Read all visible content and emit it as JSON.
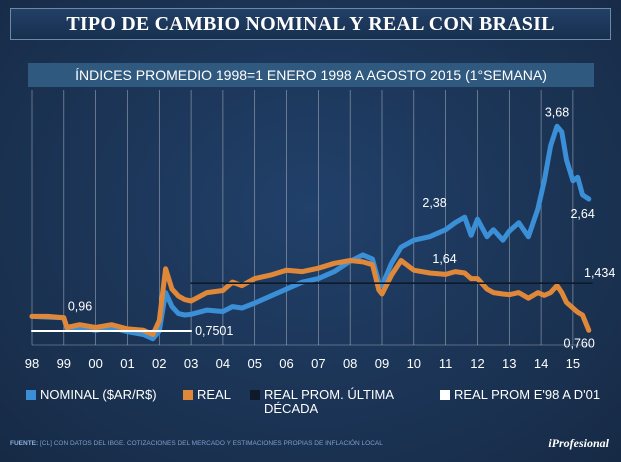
{
  "title": "TIPO DE CAMBIO NOMINAL Y REAL CON BRASIL",
  "footer": {
    "label": "FUENTE:",
    "text": "[CL] CON DATOS DEL IBGE. COTIZACIONES DEL MERCADO Y ESTIMACIONES PROPIAS DE INFLACIÓN LOCAL",
    "brand": "iProfesional"
  },
  "colors": {
    "nominal": "#3a8fd6",
    "real": "#e0883a",
    "real_prom_decada": "#0e1a2a",
    "real_prom_98_01": "#ffffff",
    "background": "#1d3656"
  },
  "chart_data": {
    "type": "line",
    "title": "ÍNDICES PROMEDIO 1998=1 ENERO 1998 A AGOSTO 2015 (1°SEMANA)",
    "xlabel": "",
    "ylabel": "",
    "xlim": [
      1998.0,
      2015.6
    ],
    "ylim": [
      0.55,
      4.2
    ],
    "x_tick_labels": [
      "98",
      "99",
      "00",
      "01",
      "02",
      "03",
      "04",
      "05",
      "06",
      "07",
      "08",
      "09",
      "10",
      "11",
      "12",
      "13",
      "14",
      "15"
    ],
    "series": [
      {
        "name": "NOMINAL ($AR/R$)",
        "x": [
          1998.0,
          1998.5,
          1999.0,
          1999.1,
          1999.5,
          2000.0,
          2000.5,
          2001.0,
          2001.5,
          2001.8,
          2002.0,
          2002.2,
          2002.4,
          2002.6,
          2002.8,
          2003.0,
          2003.5,
          2004.0,
          2004.3,
          2004.6,
          2005.0,
          2005.5,
          2006.0,
          2006.5,
          2007.0,
          2007.5,
          2008.0,
          2008.4,
          2008.7,
          2008.9,
          2009.0,
          2009.3,
          2009.6,
          2010.0,
          2010.5,
          2011.0,
          2011.3,
          2011.6,
          2011.8,
          2012.0,
          2012.3,
          2012.5,
          2012.8,
          2013.0,
          2013.3,
          2013.6,
          2013.9,
          2014.1,
          2014.3,
          2014.5,
          2014.65,
          2014.8,
          2015.0,
          2015.15,
          2015.3,
          2015.5
        ],
        "values": [
          0.96,
          0.95,
          0.94,
          0.78,
          0.8,
          0.76,
          0.8,
          0.74,
          0.7,
          0.64,
          0.75,
          1.3,
          1.1,
          1.0,
          0.98,
          0.99,
          1.05,
          1.03,
          1.1,
          1.08,
          1.15,
          1.25,
          1.35,
          1.45,
          1.5,
          1.6,
          1.75,
          1.84,
          1.78,
          1.45,
          1.4,
          1.72,
          1.95,
          2.05,
          2.1,
          2.2,
          2.3,
          2.38,
          2.12,
          2.35,
          2.1,
          2.2,
          2.05,
          2.18,
          2.3,
          2.1,
          2.5,
          2.9,
          3.4,
          3.68,
          3.6,
          3.2,
          2.9,
          2.95,
          2.7,
          2.64
        ]
      },
      {
        "name": "REAL",
        "x": [
          1998.0,
          1998.5,
          1999.0,
          1999.1,
          1999.5,
          2000.0,
          2000.5,
          2001.0,
          2001.5,
          2001.8,
          2002.0,
          2002.2,
          2002.4,
          2002.6,
          2002.8,
          2003.0,
          2003.5,
          2004.0,
          2004.3,
          2004.6,
          2005.0,
          2005.5,
          2006.0,
          2006.5,
          2007.0,
          2007.5,
          2008.0,
          2008.4,
          2008.7,
          2008.9,
          2009.0,
          2009.3,
          2009.6,
          2010.0,
          2010.5,
          2011.0,
          2011.3,
          2011.6,
          2011.8,
          2012.0,
          2012.3,
          2012.5,
          2012.8,
          2013.0,
          2013.3,
          2013.6,
          2013.9,
          2014.1,
          2014.3,
          2014.5,
          2014.65,
          2014.8,
          2015.0,
          2015.15,
          2015.3,
          2015.5
        ],
        "values": [
          0.96,
          0.96,
          0.94,
          0.8,
          0.84,
          0.8,
          0.84,
          0.78,
          0.76,
          0.7,
          0.9,
          1.64,
          1.35,
          1.25,
          1.2,
          1.18,
          1.3,
          1.33,
          1.45,
          1.4,
          1.5,
          1.55,
          1.62,
          1.6,
          1.65,
          1.72,
          1.76,
          1.74,
          1.7,
          1.34,
          1.28,
          1.55,
          1.76,
          1.62,
          1.58,
          1.56,
          1.6,
          1.58,
          1.5,
          1.5,
          1.35,
          1.3,
          1.28,
          1.27,
          1.3,
          1.22,
          1.3,
          1.26,
          1.3,
          1.4,
          1.3,
          1.16,
          1.08,
          1.02,
          0.98,
          0.76
        ]
      },
      {
        "name": "REAL PROM. ÚLTIMA DÉCADA",
        "x": [
          2003.0,
          2015.6
        ],
        "values": [
          1.434,
          1.434
        ]
      },
      {
        "name": "REAL PROM E'98 A D'01",
        "x": [
          1998.0,
          2003.0
        ],
        "values": [
          0.7501,
          0.7501
        ]
      }
    ],
    "annotations": [
      {
        "text": "0,96",
        "x": 1999.0,
        "y": 0.96
      },
      {
        "text": "0,7501",
        "x": 2003.0,
        "y": 0.7501
      },
      {
        "text": "1,434",
        "x": 2015.6,
        "y": 1.434
      },
      {
        "text": "2,38",
        "x": 2011.6,
        "y": 2.38
      },
      {
        "text": "3,68",
        "x": 2014.5,
        "y": 3.68
      },
      {
        "text": "2,64",
        "x": 2015.5,
        "y": 2.64
      },
      {
        "text": "1,64",
        "x": 2011.6,
        "y": 1.64
      },
      {
        "text": "0,760",
        "x": 2015.5,
        "y": 0.76
      }
    ]
  }
}
